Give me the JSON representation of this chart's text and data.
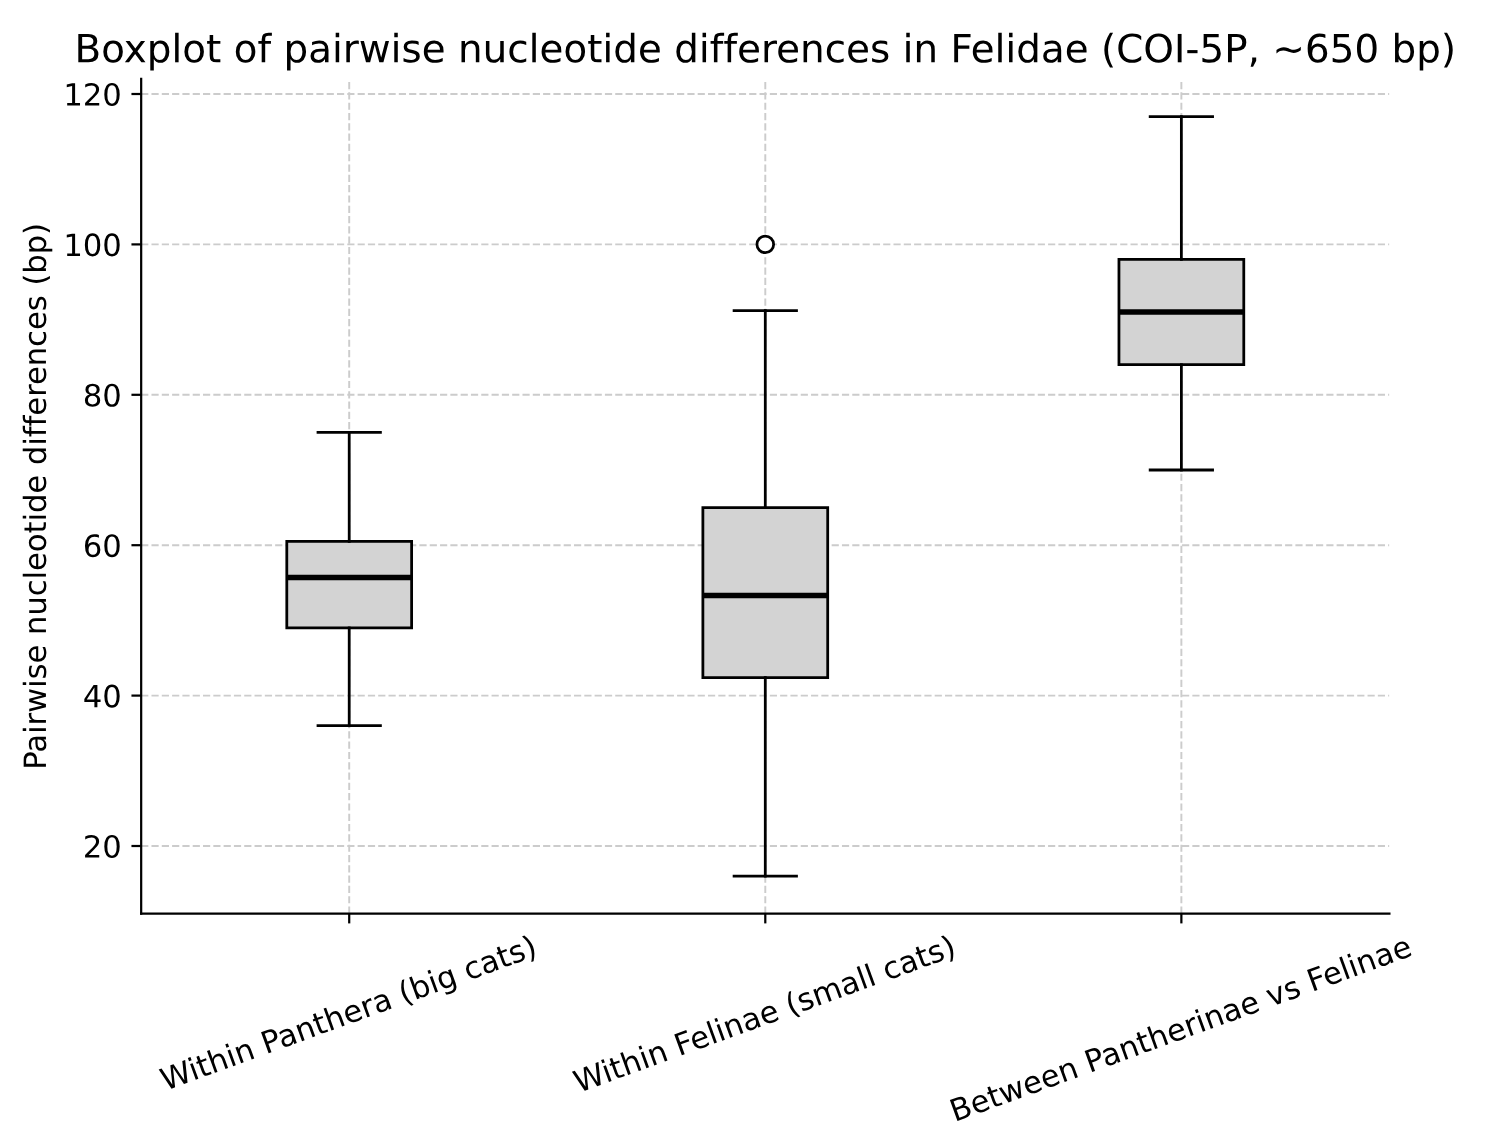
{
  "chart_data": {
    "type": "box",
    "title": "Boxplot of pairwise nucleotide differences in Felidae (COI-5P, ~650 bp)",
    "ylabel": "Pairwise nucleotide differences (bp)",
    "categories": [
      "Within Panthera (big cats)",
      "Within Felinae (small cats)",
      "Between Pantherinae vs Felinae"
    ],
    "boxes": [
      {
        "low": 36,
        "q1": 49,
        "median": 55.7,
        "q3": 60.5,
        "high": 75
      },
      {
        "low": 16,
        "q1": 42.4,
        "median": 53.3,
        "q3": 65,
        "high": 91.2,
        "outliers": [
          100
        ]
      },
      {
        "low": 70,
        "q1": 84,
        "median": 91,
        "q3": 98,
        "high": 117
      }
    ],
    "color": "#d3d3d3",
    "ylim": [
      11,
      122
    ],
    "yticks": [
      20,
      40,
      60,
      80,
      100,
      120
    ],
    "grid": true
  }
}
